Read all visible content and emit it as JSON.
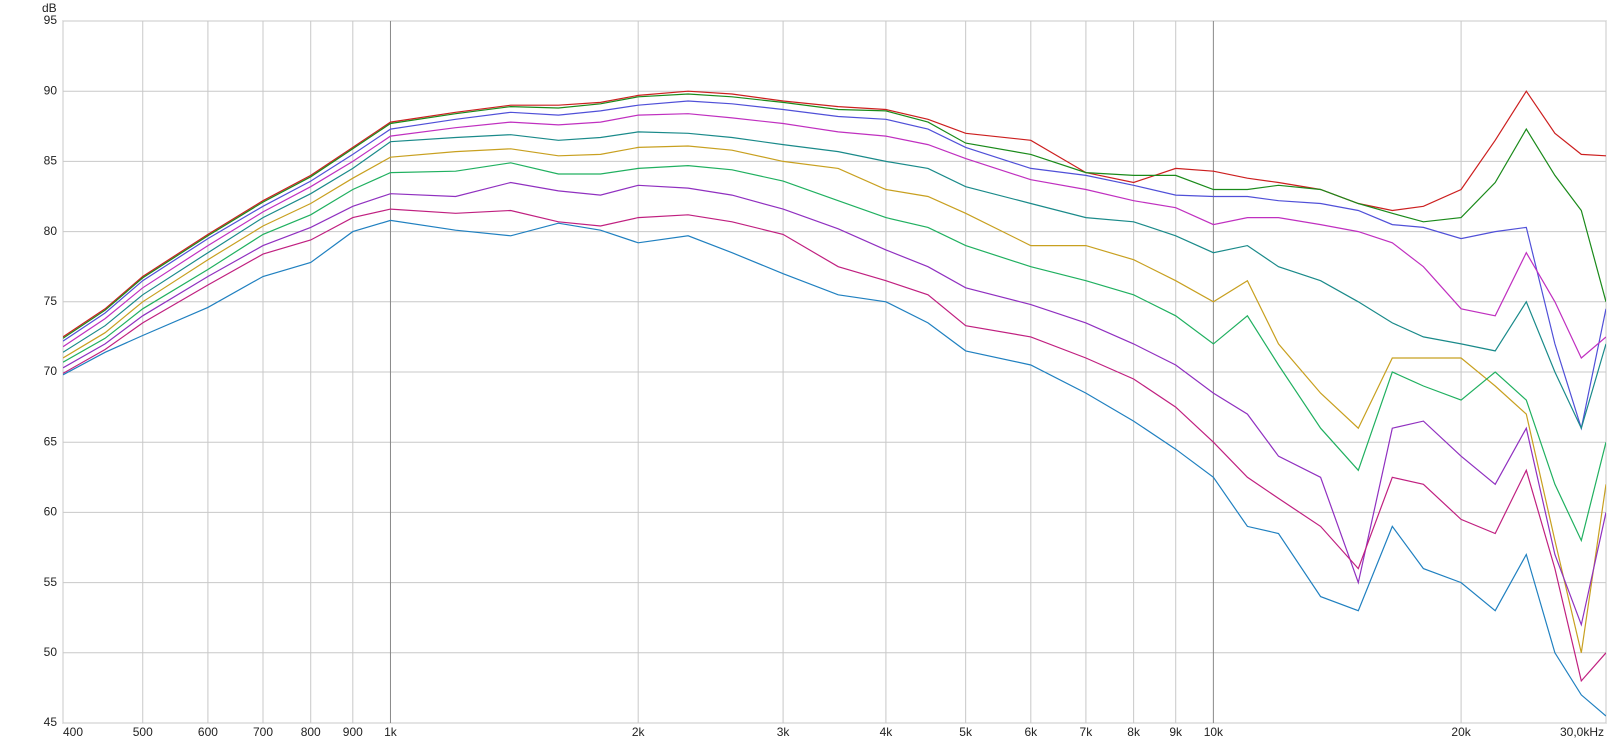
{
  "chart_data": {
    "type": "line",
    "y_label": "dB",
    "xscale": "log",
    "grid": true,
    "xlim": [
      400,
      30000
    ],
    "ylim": [
      45,
      95
    ],
    "xticks": [
      400,
      500,
      600,
      700,
      800,
      900,
      {
        "value": 1000,
        "label": "1k"
      },
      {
        "value": 2000,
        "label": "2k"
      },
      {
        "value": 3000,
        "label": "3k"
      },
      {
        "value": 4000,
        "label": "4k"
      },
      {
        "value": 5000,
        "label": "5k"
      },
      {
        "value": 6000,
        "label": "6k"
      },
      {
        "value": 7000,
        "label": "7k"
      },
      {
        "value": 8000,
        "label": "8k"
      },
      {
        "value": 9000,
        "label": "9k"
      },
      {
        "value": 10000,
        "label": "10k"
      },
      {
        "value": 20000,
        "label": "20k"
      },
      {
        "value": 30000,
        "label": "30,0kHz"
      }
    ],
    "yticks": [
      45,
      50,
      55,
      60,
      65,
      70,
      75,
      80,
      85,
      90,
      95
    ],
    "x": [
      400,
      450,
      500,
      600,
      700,
      800,
      900,
      1000,
      1200,
      1400,
      1600,
      1800,
      2000,
      2300,
      2600,
      3000,
      3500,
      4000,
      4500,
      5000,
      6000,
      7000,
      8000,
      9000,
      10000,
      11000,
      12000,
      13500,
      15000,
      16500,
      18000,
      20000,
      22000,
      24000,
      26000,
      28000,
      30000
    ],
    "series": [
      {
        "color": "#cc1f1f",
        "values": [
          72.5,
          74.5,
          76.8,
          79.8,
          82.2,
          84,
          86,
          87.8,
          88.5,
          89,
          89,
          89.2,
          89.7,
          90,
          89.8,
          89.3,
          88.9,
          88.7,
          88,
          87,
          86.5,
          84.2,
          83.5,
          84.5,
          84.3,
          83.8,
          83.5,
          83,
          82,
          81.5,
          81.8,
          83,
          86.5,
          90,
          87,
          85.5,
          85.4
        ]
      },
      {
        "color": "#1a8a1a",
        "values": [
          72.4,
          74.4,
          76.7,
          79.7,
          82.1,
          83.9,
          85.9,
          87.7,
          88.4,
          88.9,
          88.8,
          89.1,
          89.6,
          89.8,
          89.6,
          89.2,
          88.7,
          88.6,
          87.8,
          86.3,
          85.5,
          84.2,
          84,
          84,
          83,
          83,
          83.3,
          83,
          82,
          81.3,
          80.7,
          81,
          83.5,
          87.3,
          84,
          81.5,
          75
        ]
      },
      {
        "color": "#5050d8",
        "values": [
          72.2,
          74.2,
          76.5,
          79.5,
          81.8,
          83.6,
          85.5,
          87.3,
          88,
          88.5,
          88.3,
          88.6,
          89,
          89.3,
          89.1,
          88.7,
          88.2,
          88,
          87.3,
          86,
          84.5,
          84,
          83.3,
          82.6,
          82.5,
          82.5,
          82.2,
          82,
          81.5,
          80.5,
          80.3,
          79.5,
          80,
          80.3,
          72,
          66,
          74.5
        ]
      },
      {
        "color": "#c030c0",
        "values": [
          71.8,
          73.8,
          76,
          79,
          81.4,
          83.2,
          85,
          86.8,
          87.4,
          87.8,
          87.6,
          87.8,
          88.3,
          88.4,
          88.1,
          87.7,
          87.1,
          86.8,
          86.2,
          85.2,
          83.7,
          83,
          82.2,
          81.7,
          80.5,
          81,
          81,
          80.5,
          80,
          79.2,
          77.5,
          74.5,
          74,
          78.5,
          75,
          71,
          72.5
        ]
      },
      {
        "color": "#1a8a8a",
        "values": [
          71.4,
          73.3,
          75.5,
          78.5,
          81,
          82.7,
          84.5,
          86.4,
          86.7,
          86.9,
          86.5,
          86.7,
          87.1,
          87,
          86.7,
          86.2,
          85.7,
          85,
          84.5,
          83.2,
          82,
          81,
          80.7,
          79.7,
          78.5,
          79,
          77.5,
          76.5,
          75,
          73.5,
          72.5,
          72,
          71.5,
          75,
          70,
          66,
          72
        ]
      },
      {
        "color": "#c8a020",
        "values": [
          71,
          72.8,
          75,
          78,
          80.4,
          82,
          83.8,
          85.3,
          85.7,
          85.9,
          85.4,
          85.5,
          86,
          86.1,
          85.8,
          85,
          84.5,
          83,
          82.5,
          81.3,
          79,
          79,
          78,
          76.5,
          75,
          76.5,
          72,
          68.5,
          66,
          71,
          71,
          71,
          69,
          67,
          58,
          50,
          62
        ]
      },
      {
        "color": "#20b060",
        "values": [
          70.7,
          72.4,
          74.5,
          77.3,
          79.8,
          81.2,
          83,
          84.2,
          84.3,
          84.9,
          84.1,
          84.1,
          84.5,
          84.7,
          84.4,
          83.6,
          82.2,
          81,
          80.3,
          79,
          77.5,
          76.5,
          75.5,
          74,
          72,
          74,
          70.5,
          66,
          63,
          70,
          69,
          68,
          70,
          68,
          62,
          58,
          65
        ]
      },
      {
        "color": "#9030c0",
        "values": [
          70.3,
          72,
          74,
          76.8,
          79,
          80.3,
          81.8,
          82.7,
          82.5,
          83.5,
          82.9,
          82.6,
          83.3,
          83.1,
          82.6,
          81.6,
          80.2,
          78.7,
          77.5,
          76,
          74.8,
          73.5,
          72,
          70.5,
          68.5,
          67,
          64,
          62.5,
          55,
          66,
          66.5,
          64,
          62,
          66,
          57,
          52,
          60
        ]
      },
      {
        "color": "#c02080",
        "values": [
          69.9,
          71.6,
          73.5,
          76.2,
          78.4,
          79.4,
          81,
          81.6,
          81.3,
          81.5,
          80.7,
          80.4,
          81,
          81.2,
          80.7,
          79.8,
          77.5,
          76.5,
          75.5,
          73.3,
          72.5,
          71,
          69.5,
          67.5,
          65,
          62.5,
          61,
          59,
          56,
          62.5,
          62,
          59.5,
          58.5,
          63,
          56,
          48,
          50
        ]
      },
      {
        "color": "#2080c0",
        "values": [
          69.8,
          71.4,
          72.6,
          74.6,
          76.8,
          77.8,
          80,
          80.8,
          80.1,
          79.7,
          80.6,
          80.1,
          79.2,
          79.7,
          78.5,
          77,
          75.5,
          75,
          73.5,
          71.5,
          70.5,
          68.5,
          66.5,
          64.5,
          62.5,
          59,
          58.5,
          54,
          53,
          59,
          56,
          55,
          53,
          57,
          50,
          47,
          45.5
        ]
      }
    ]
  }
}
